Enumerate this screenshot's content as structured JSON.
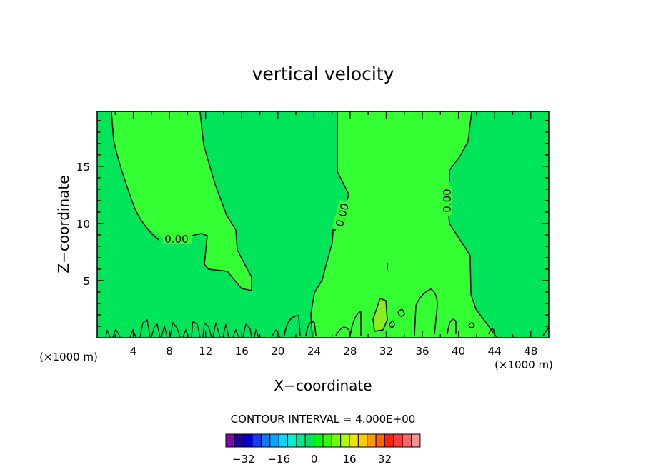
{
  "chart_data": {
    "type": "contour",
    "title": "vertical velocity",
    "xlabel": "X−coordinate",
    "ylabel": "Z−coordinate",
    "x_unit_left": "(×1000 m)",
    "x_unit_right": "(×1000 m)",
    "xlim": [
      0,
      50
    ],
    "ylim": [
      0,
      19.8
    ],
    "x_ticks": [
      "4",
      "8",
      "12",
      "16",
      "20",
      "24",
      "28",
      "32",
      "36",
      "40",
      "44",
      "48"
    ],
    "y_ticks": [
      "5",
      "10",
      "15"
    ],
    "contour_labels": [
      "0.00",
      "0.00",
      "0.00"
    ],
    "contour_interval_text": "CONTOUR INTERVAL = 4.000E+00",
    "colorbar": {
      "tick_labels": [
        "−32",
        "−16",
        "0",
        "16",
        "32"
      ],
      "colors": [
        "#7a0fa8",
        "#2300a0",
        "#0000cc",
        "#1439ff",
        "#0a78ff",
        "#00aaff",
        "#00d8ff",
        "#00f0d0",
        "#00e890",
        "#00e45a",
        "#00ff00",
        "#2eff00",
        "#74ff00",
        "#b0ff00",
        "#e6e600",
        "#ffcc00",
        "#ff9900",
        "#ff6600",
        "#ff2200",
        "#ff3a3a",
        "#ff6666",
        "#ff9090"
      ]
    },
    "fill_colors": {
      "background": "#00e45a",
      "positive": "#33ff33",
      "strong_positive": "#88ee22"
    },
    "grid": false
  }
}
